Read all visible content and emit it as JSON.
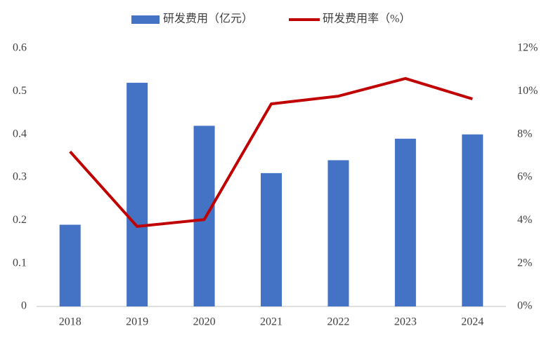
{
  "chart_data": {
    "type": "bar",
    "categories": [
      "2018",
      "2019",
      "2020",
      "2021",
      "2022",
      "2023",
      "2024"
    ],
    "series": [
      {
        "name": "研发费用（亿元）",
        "type": "bar",
        "color": "#4472c4",
        "values": [
          0.19,
          0.52,
          0.42,
          0.31,
          0.34,
          0.39,
          0.4
        ]
      },
      {
        "name": "研发费用率（%）",
        "type": "line",
        "axis": "y2",
        "color": "#c00000",
        "values": [
          7.2,
          3.72,
          4.04,
          9.42,
          9.78,
          10.6,
          9.65
        ]
      }
    ],
    "ylim": [
      0,
      0.6
    ],
    "yticks": [
      0,
      0.1,
      0.2,
      0.3,
      0.4,
      0.5,
      0.6
    ],
    "y2lim": [
      0,
      12
    ],
    "y2ticks": [
      {
        "value": 0,
        "label": "0%"
      },
      {
        "value": 2,
        "label": "2%"
      },
      {
        "value": 4,
        "label": "4%"
      },
      {
        "value": 6,
        "label": "6%"
      },
      {
        "value": 8,
        "label": "8%"
      },
      {
        "value": 10,
        "label": "10%"
      },
      {
        "value": 12,
        "label": "12%"
      }
    ],
    "grid": false,
    "legend": "top"
  }
}
